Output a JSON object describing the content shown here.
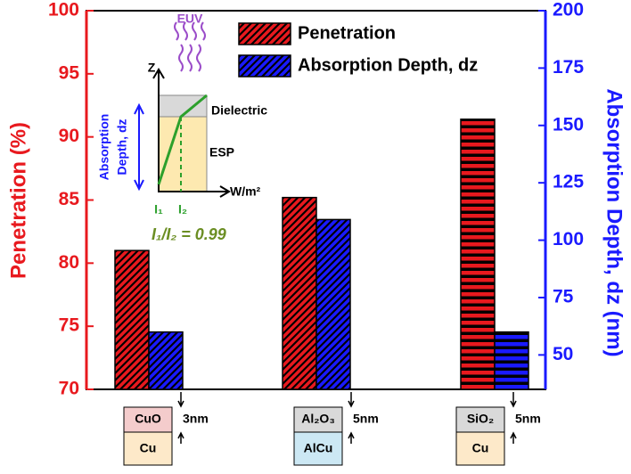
{
  "chart_data": {
    "type": "bar",
    "y_label": "Penetration (%)",
    "y2_label": "Absorption Depth, dz (nm)",
    "categories": [
      "CuO",
      "Al₂O₃",
      "SiO₂"
    ],
    "substrates": [
      "Cu",
      "AlCu",
      "Cu"
    ],
    "thickness": [
      "3nm",
      "5nm",
      "5nm"
    ],
    "series": [
      {
        "name": "Penetration",
        "color": "#e8191e",
        "hatch": [
          "diagonal",
          "diagonal",
          "horizontal"
        ],
        "values": [
          81,
          85.2,
          91.4
        ]
      },
      {
        "name": "Absorption Depth, dz",
        "color": "#1a1aff",
        "axis": "y2",
        "hatch": [
          "diagonal",
          "diagonal",
          "horizontal"
        ],
        "values": [
          60,
          109,
          60
        ]
      }
    ],
    "ylim": [
      70,
      100
    ],
    "yticks": [
      70,
      75,
      80,
      85,
      90,
      95,
      100
    ],
    "y2lim": [
      35,
      200
    ],
    "y2ticks": [
      50,
      75,
      100,
      125,
      150,
      175,
      200
    ],
    "legend": "top-right",
    "inset": {
      "euv": "EUV",
      "z": "Z",
      "dielectric": "Dielectric",
      "esp": "ESP",
      "x_unit": "W/m²",
      "depth_line1": "Absorption",
      "depth_line2": "Depth, dz",
      "i1": "I₁",
      "i2": "I₂",
      "ratio": "I₁/I₂ = 0.99"
    }
  }
}
